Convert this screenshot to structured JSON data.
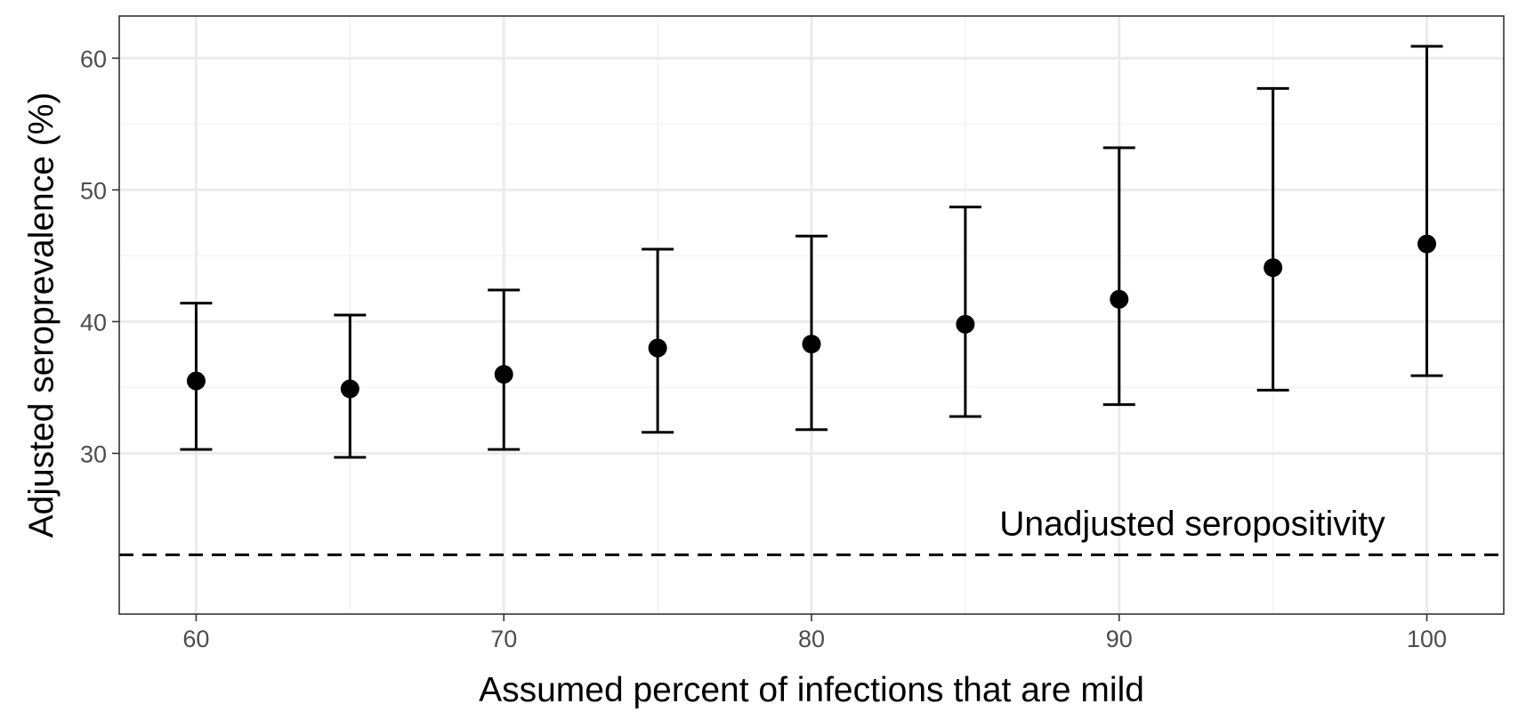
{
  "chart_data": {
    "type": "scatter",
    "xlabel": "Assumed percent of infections that are mild",
    "ylabel": "Adjusted seroprevalence (%)",
    "xlim": [
      57.5,
      102.5
    ],
    "ylim": [
      17.8,
      63.2
    ],
    "x_ticks": [
      60,
      70,
      80,
      90,
      100
    ],
    "y_ticks": [
      30,
      40,
      50,
      60
    ],
    "x_minor_ticks": [
      65,
      75,
      85,
      95
    ],
    "y_minor_ticks": [
      35,
      45,
      55
    ],
    "grid": true,
    "points": [
      {
        "x": 60,
        "y": 35.5,
        "lower": 30.3,
        "upper": 41.4
      },
      {
        "x": 65,
        "y": 34.9,
        "lower": 29.7,
        "upper": 40.5
      },
      {
        "x": 70,
        "y": 36.0,
        "lower": 30.3,
        "upper": 42.4
      },
      {
        "x": 75,
        "y": 38.0,
        "lower": 31.6,
        "upper": 45.5
      },
      {
        "x": 80,
        "y": 38.3,
        "lower": 31.8,
        "upper": 46.5
      },
      {
        "x": 85,
        "y": 39.8,
        "lower": 32.8,
        "upper": 48.7
      },
      {
        "x": 90,
        "y": 41.7,
        "lower": 33.7,
        "upper": 53.2
      },
      {
        "x": 95,
        "y": 44.1,
        "lower": 34.8,
        "upper": 57.7
      },
      {
        "x": 100,
        "y": 45.9,
        "lower": 35.9,
        "upper": 60.9
      }
    ],
    "reference_line": {
      "y": 22.3,
      "style": "dashed",
      "label": "Unadjusted seropositivity"
    },
    "colors": {
      "points": "#000000",
      "grid_major": "#ebebeb",
      "grid_minor": "#f3f3f3",
      "panel_border": "#333333"
    }
  }
}
